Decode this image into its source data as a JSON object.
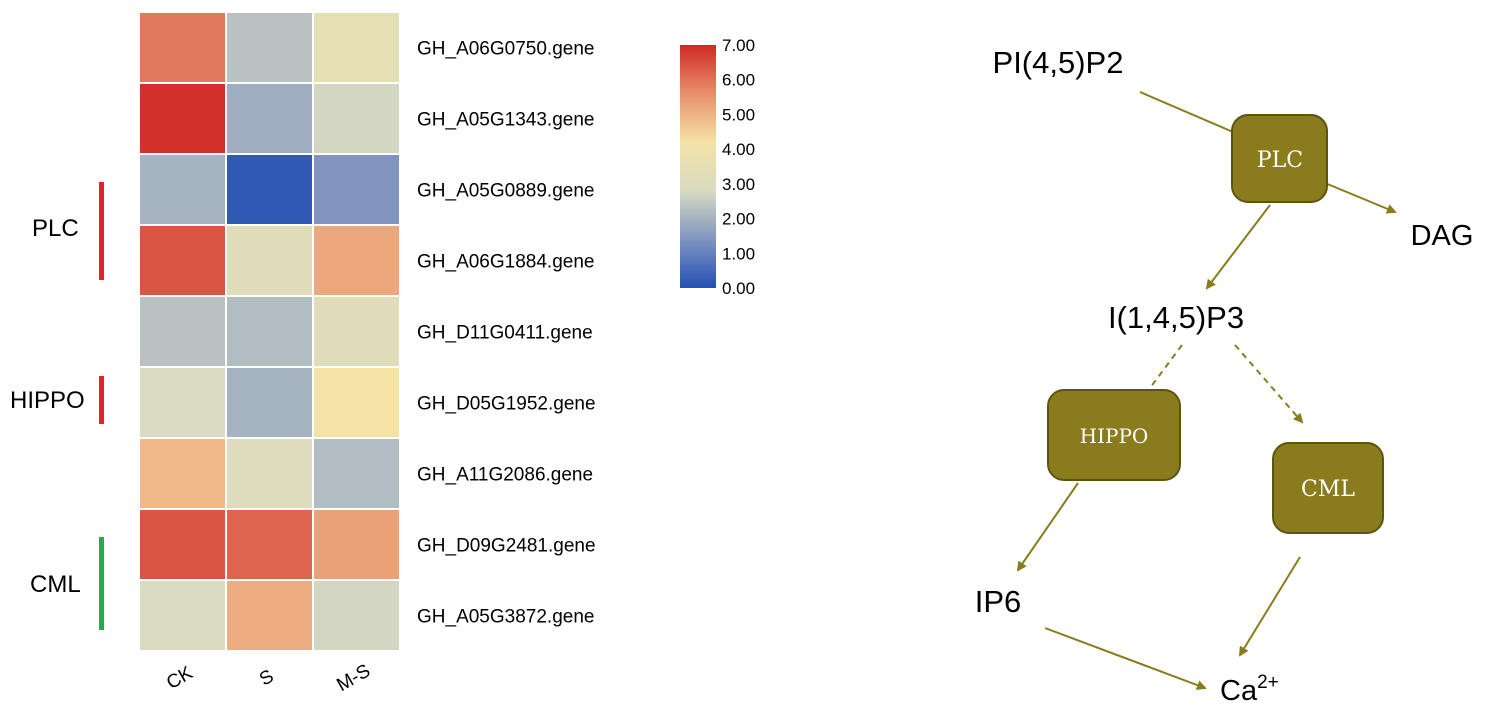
{
  "chart_data": {
    "type": "heatmap",
    "columns": [
      "CK",
      "S",
      "M-S"
    ],
    "rows": [
      "GH_A06G0750.gene",
      "GH_A05G1343.gene",
      "GH_A05G0889.gene",
      "GH_A06G1884.gene",
      "GH_D11G0411.gene",
      "GH_D05G1952.gene",
      "GH_A11G2086.gene",
      "GH_D09G2481.gene",
      "GH_A05G3872.gene"
    ],
    "values": [
      [
        5.9,
        2.3,
        3.5
      ],
      [
        6.9,
        1.9,
        2.7
      ],
      [
        2.0,
        0.2,
        1.4
      ],
      [
        6.4,
        3.2,
        5.2
      ],
      [
        2.3,
        2.2,
        3.2
      ],
      [
        2.8,
        2.0,
        4.2
      ],
      [
        4.9,
        3.0,
        2.2
      ],
      [
        6.4,
        6.2,
        5.3
      ],
      [
        2.8,
        5.1,
        2.7
      ]
    ],
    "groups": [
      {
        "name": "PLC",
        "color": "#e0262b"
      },
      {
        "name": "HIPPO",
        "color": "#e0262b"
      },
      {
        "name": "CML",
        "color": "#21ad4d"
      }
    ],
    "colorscale": {
      "min": 0,
      "max": 7,
      "colors": [
        "#2450b5",
        "#7f95bf",
        "#d9dbc2",
        "#f5e3a6",
        "#e88f6b",
        "#d02a26"
      ],
      "ticks": [
        "7.00",
        "6.00",
        "5.00",
        "4.00",
        "3.00",
        "2.00",
        "1.00",
        "0.00"
      ]
    },
    "legend_position": "right"
  },
  "pathway": {
    "color": "#8a7c1d",
    "nodes": {
      "pip2": "PI(4,5)P2",
      "plc": "PLC",
      "dag": "DAG",
      "ip3": "I(1,4,5)P3",
      "hippo": "HIPPO",
      "cml": "CML",
      "ip6": "IP6",
      "ca_base": "Ca",
      "ca_sup": "2+"
    }
  }
}
